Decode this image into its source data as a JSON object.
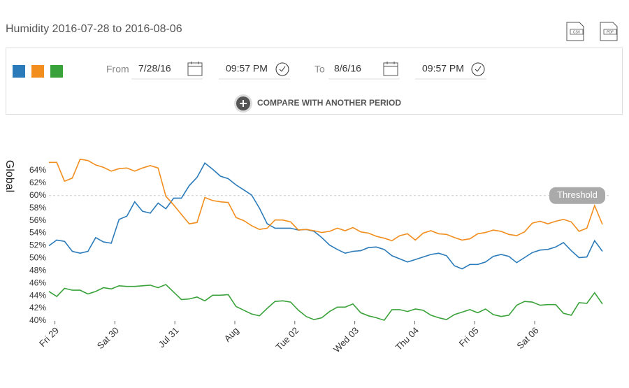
{
  "header": {
    "title": "Humidity 2016-07-28 to 2016-08-06",
    "exports": [
      "CSV",
      "PDF"
    ]
  },
  "controls": {
    "from_label": "From",
    "from_date": "7/28/16",
    "from_time": "09:57 PM",
    "to_label": "To",
    "to_date": "8/6/16",
    "to_time": "09:57 PM",
    "compare": "COMPARE WITH ANOTHER PERIOD"
  },
  "chart_data": {
    "type": "line",
    "y_label": "Global",
    "x": [
      -0.1,
      0.03,
      0.16,
      0.29,
      0.42,
      0.55,
      0.68,
      0.81,
      0.94,
      1.07,
      1.2,
      1.33,
      1.46,
      1.59,
      1.72,
      1.85,
      1.98,
      2.11,
      2.24,
      2.37,
      2.5,
      2.63,
      2.76,
      2.89,
      3.02,
      3.15,
      3.28,
      3.41,
      3.54,
      3.67,
      3.8,
      3.93,
      4.06,
      4.19,
      4.32,
      4.45,
      4.58,
      4.71,
      4.84,
      4.97,
      5.1,
      5.23,
      5.36,
      5.49,
      5.62,
      5.75,
      5.88,
      6.01,
      6.14,
      6.27,
      6.4,
      6.53,
      6.66,
      6.79,
      6.92,
      7.05,
      7.18,
      7.31,
      7.44,
      7.57,
      7.7,
      7.83,
      7.96,
      8.09,
      8.22,
      8.35,
      8.48,
      8.61,
      8.74,
      8.87,
      9.0,
      9.13
    ],
    "series": [
      {
        "color": "#2b7bba",
        "values": [
          52,
          52.9,
          52.7,
          51.1,
          50.8,
          51.1,
          53.3,
          52.6,
          52.4,
          56.2,
          56.7,
          59,
          57.5,
          57.2,
          58.8,
          57.9,
          59.6,
          59.6,
          61.6,
          62.9,
          65.2,
          64.2,
          63.1,
          62.7,
          61.7,
          60.9,
          60.1,
          58,
          55.5,
          54.8,
          54.8,
          54.8,
          54.5,
          54.6,
          54.3,
          53.3,
          52.1,
          51.4,
          50.8,
          51.1,
          51.2,
          51.7,
          51.8,
          51.4,
          50.4,
          49.9,
          49.4,
          49.8,
          50.2,
          50.6,
          50.8,
          50.4,
          48.8,
          48.3,
          49,
          49,
          49.4,
          50.3,
          50.6,
          50.3,
          49.3,
          50.1,
          50.9,
          51.3,
          51.4,
          51.8,
          52.5,
          51.2,
          50.1,
          50.2,
          52.8,
          51.1
        ]
      },
      {
        "color": "#f28e1e",
        "values": [
          65.3,
          65.3,
          62.3,
          62.8,
          65.8,
          65.6,
          64.9,
          64.5,
          63.9,
          64.3,
          64.4,
          63.9,
          64.4,
          64.8,
          64.4,
          59.9,
          58.5,
          57,
          55.5,
          55.7,
          59.7,
          59.2,
          59,
          58.9,
          56.5,
          56,
          55.2,
          54.6,
          54.8,
          56.1,
          56.1,
          55.8,
          54.5,
          54.6,
          54.4,
          54.1,
          54.3,
          54.8,
          54.4,
          54.9,
          54.2,
          54,
          53.5,
          53.2,
          52.8,
          53.6,
          53.9,
          52.9,
          54,
          54.4,
          53.9,
          53.8,
          53.3,
          52.9,
          53.1,
          53.9,
          54.1,
          54.5,
          54.3,
          53.8,
          53.6,
          54.2,
          55.6,
          55.9,
          55.5,
          55.9,
          56.2,
          55.8,
          54.3,
          54.8,
          58.4,
          55.4
        ]
      },
      {
        "color": "#3aa23a",
        "values": [
          44.7,
          43.9,
          45.2,
          44.9,
          44.9,
          44.3,
          44.7,
          45.3,
          45.1,
          45.6,
          45.5,
          45.5,
          45.6,
          45.7,
          45.3,
          45.8,
          44.6,
          43.4,
          43.5,
          43.8,
          43.2,
          44.1,
          44.1,
          44.2,
          42.3,
          41.7,
          41.1,
          40.8,
          42,
          43.1,
          43.2,
          43,
          41.7,
          40.7,
          40.2,
          40.5,
          41.5,
          42.2,
          42.2,
          42.7,
          41.3,
          40.8,
          40.5,
          40.1,
          41.8,
          41.8,
          41.5,
          41.9,
          41.7,
          40.9,
          40.5,
          40.2,
          41,
          41.4,
          41.8,
          41.3,
          41.9,
          41,
          40.7,
          40.9,
          42.5,
          43.1,
          43,
          42.5,
          42.6,
          42.6,
          41.2,
          40.9,
          42.9,
          42.8,
          44.5,
          42.7
        ]
      }
    ],
    "xlim": [
      -0.1,
      9.13
    ],
    "xticks": [
      {
        "value": 0,
        "label": "Fri 29"
      },
      {
        "value": 1,
        "label": "Sat 30"
      },
      {
        "value": 2,
        "label": "Jul 31"
      },
      {
        "value": 3,
        "label": "Aug"
      },
      {
        "value": 4,
        "label": "Tue 02"
      },
      {
        "value": 5,
        "label": "Wed 03"
      },
      {
        "value": 6,
        "label": "Thu 04"
      },
      {
        "value": 7,
        "label": "Fri 05"
      },
      {
        "value": 8,
        "label": "Sat 06"
      }
    ],
    "ylim": [
      40,
      66
    ],
    "yticks": [
      {
        "value": 40,
        "label": "40%"
      },
      {
        "value": 42,
        "label": "42%"
      },
      {
        "value": 44,
        "label": "44%"
      },
      {
        "value": 46,
        "label": "46%"
      },
      {
        "value": 48,
        "label": "48%"
      },
      {
        "value": 50,
        "label": "50%"
      },
      {
        "value": 52,
        "label": "52%"
      },
      {
        "value": 54,
        "label": "54%"
      },
      {
        "value": 56,
        "label": "56%"
      },
      {
        "value": 58,
        "label": "58%"
      },
      {
        "value": 60,
        "label": "60%"
      },
      {
        "value": 62,
        "label": "62%"
      },
      {
        "value": 64,
        "label": "64%"
      }
    ],
    "threshold": {
      "value": 60,
      "label": "Threshold"
    },
    "grid": false
  }
}
